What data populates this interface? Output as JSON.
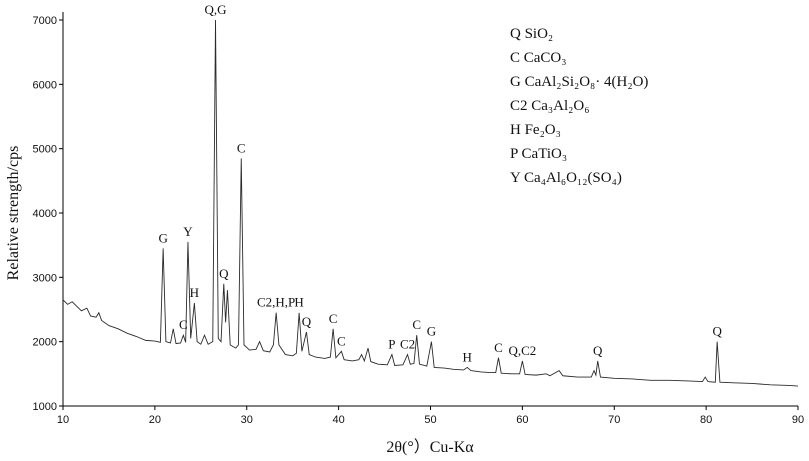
{
  "chart_data": {
    "type": "line",
    "x_label": "2θ(°）Cu-Kα",
    "y_label": "Relative strength/cps",
    "xlim": [
      10,
      90
    ],
    "xticks": [
      10,
      20,
      30,
      40,
      50,
      60,
      70,
      80,
      90
    ],
    "ylim": [
      1000,
      7000
    ],
    "yticks": [
      1000,
      2000,
      3000,
      4000,
      5000,
      6000,
      7000
    ],
    "color": "#2b2b2b",
    "x": [
      10,
      10.5,
      11,
      12,
      12.6,
      13,
      13.6,
      13.9,
      14.2,
      15,
      16,
      17,
      18,
      19,
      20,
      20.6,
      20.9,
      21.2,
      21.7,
      22.0,
      22.3,
      22.8,
      23.1,
      23.35,
      23.6,
      23.9,
      24.3,
      24.6,
      25.0,
      25.4,
      25.8,
      26.3,
      26.6,
      26.9,
      27.2,
      27.5,
      27.7,
      27.9,
      28.2,
      28.8,
      29.1,
      29.4,
      29.7,
      30.3,
      31.0,
      31.4,
      31.8,
      32.5,
      32.9,
      33.2,
      33.5,
      34.2,
      35.0,
      35.4,
      35.7,
      36.0,
      36.5,
      36.8,
      37.5,
      38.5,
      39.1,
      39.4,
      39.7,
      40.3,
      40.6,
      41.5,
      42.2,
      42.5,
      42.8,
      43.2,
      43.5,
      44.3,
      45.3,
      45.8,
      46.1,
      47.0,
      47.5,
      47.8,
      48.2,
      48.5,
      48.8,
      49.6,
      50.1,
      50.4,
      51.5,
      52.5,
      53.6,
      54.0,
      54.4,
      55.5,
      56.5,
      57.1,
      57.4,
      57.7,
      58.8,
      59.7,
      60.0,
      60.3,
      61.5,
      62.6,
      63.0,
      64.0,
      64.4,
      66.0,
      67.5,
      67.8,
      68.0,
      68.2,
      68.5,
      70.0,
      72.0,
      74.0,
      76.0,
      78.0,
      79.6,
      79.9,
      80.2,
      81.0,
      81.2,
      81.5,
      83.0,
      85.0,
      87.0,
      89.0,
      90.0
    ],
    "values": [
      2650,
      2580,
      2620,
      2480,
      2520,
      2400,
      2380,
      2450,
      2330,
      2250,
      2200,
      2130,
      2080,
      2020,
      2010,
      1990,
      3450,
      2000,
      1980,
      2200,
      1970,
      1980,
      2100,
      1990,
      3550,
      2050,
      2600,
      2000,
      1960,
      2100,
      1960,
      2000,
      7000,
      2050,
      2000,
      2900,
      2300,
      2800,
      1950,
      1900,
      1950,
      4850,
      1950,
      1870,
      1880,
      2000,
      1860,
      1840,
      1950,
      2450,
      1950,
      1800,
      1780,
      1820,
      2450,
      1850,
      2150,
      1800,
      1760,
      1740,
      1760,
      2200,
      1750,
      1850,
      1720,
      1700,
      1720,
      1800,
      1700,
      1900,
      1690,
      1650,
      1640,
      1800,
      1630,
      1640,
      1800,
      1650,
      1660,
      2100,
      1650,
      1620,
      2000,
      1600,
      1590,
      1570,
      1560,
      1600,
      1550,
      1530,
      1520,
      1520,
      1750,
      1510,
      1500,
      1500,
      1700,
      1490,
      1480,
      1500,
      1470,
      1550,
      1470,
      1450,
      1450,
      1550,
      1480,
      1700,
      1450,
      1430,
      1420,
      1400,
      1400,
      1390,
      1380,
      1450,
      1380,
      1370,
      2000,
      1370,
      1360,
      1350,
      1330,
      1320,
      1310
    ],
    "annotations": [
      {
        "text": "G",
        "x": 20.9,
        "y": 3450
      },
      {
        "text": "C",
        "x": 23.1,
        "y": 2100
      },
      {
        "text": "Y",
        "x": 23.6,
        "y": 3550
      },
      {
        "text": "H",
        "x": 24.3,
        "y": 2600
      },
      {
        "text": "Q,G",
        "x": 26.6,
        "y": 7000
      },
      {
        "text": "Q",
        "x": 27.5,
        "y": 2900
      },
      {
        "text": "C",
        "x": 29.4,
        "y": 4850
      },
      {
        "text": "C2,H,P",
        "x": 33.2,
        "y": 2450
      },
      {
        "text": "H",
        "x": 35.7,
        "y": 2450
      },
      {
        "text": "Q",
        "x": 36.5,
        "y": 2150
      },
      {
        "text": "C",
        "x": 39.4,
        "y": 2200
      },
      {
        "text": "C",
        "x": 40.3,
        "y": 1850
      },
      {
        "text": "P",
        "x": 45.8,
        "y": 1800
      },
      {
        "text": "C2",
        "x": 47.5,
        "y": 1800
      },
      {
        "text": "C",
        "x": 48.5,
        "y": 2100
      },
      {
        "text": "G",
        "x": 50.1,
        "y": 2000
      },
      {
        "text": "H",
        "x": 54.0,
        "y": 1600
      },
      {
        "text": "C",
        "x": 57.4,
        "y": 1750
      },
      {
        "text": "Q,C2",
        "x": 60.0,
        "y": 1700
      },
      {
        "text": "Q",
        "x": 68.2,
        "y": 1700
      },
      {
        "text": "Q",
        "x": 81.2,
        "y": 2000
      }
    ],
    "legend": [
      "Q SiO₂",
      "C CaCO₃",
      "G CaAl₂Si₂O₈· 4(H₂O)",
      "C2 Ca₃Al₂O₆",
      "H Fe₂O₃",
      "P CaTiO₃",
      "Y Ca₄Al₆O₁₂(SO₄)"
    ]
  }
}
